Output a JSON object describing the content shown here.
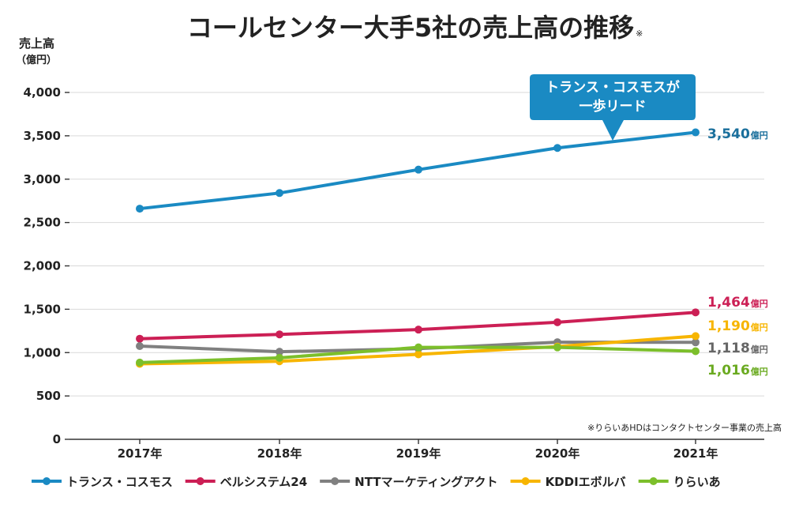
{
  "chart_data": {
    "type": "line",
    "title": "コールセンター大手5社の売上高の推移",
    "title_mark": "※",
    "ylabel": "売上高",
    "ylabel_unit": "（億円）",
    "ylim": [
      0,
      4000
    ],
    "yticks": [
      0,
      500,
      1000,
      1500,
      2000,
      2500,
      3000,
      3500,
      4000
    ],
    "ytick_labels": [
      "0",
      "500",
      "1,000",
      "1,500",
      "2,000",
      "2,500",
      "3,000",
      "3,500",
      "4,000"
    ],
    "categories": [
      "2017年",
      "2018年",
      "2019年",
      "2020年",
      "2021年"
    ],
    "grid": true,
    "legend_position": "bottom",
    "series": [
      {
        "name": "トランス・コスモス",
        "color": "#1a8ac3",
        "values": [
          2660,
          2840,
          3110,
          3360,
          3540
        ],
        "end_label": "3,540",
        "end_unit": "億円",
        "end_color": "#1a6f9c"
      },
      {
        "name": "ベルシステム24",
        "color": "#cc1f55",
        "values": [
          1160,
          1210,
          1265,
          1350,
          1464
        ],
        "end_label": "1,464",
        "end_unit": "億円",
        "end_color": "#cc1f55"
      },
      {
        "name": "NTTマーケティングアクト",
        "color": "#808080",
        "values": [
          1075,
          1010,
          1045,
          1120,
          1118
        ],
        "end_label": "1,118",
        "end_unit": "億円",
        "end_color": "#666666"
      },
      {
        "name": "KDDIエボルバ",
        "color": "#f7b500",
        "values": [
          870,
          900,
          980,
          1070,
          1190
        ],
        "end_label": "1,190",
        "end_unit": "億円",
        "end_color": "#f7b500"
      },
      {
        "name": "りらいあ",
        "color": "#7cbf2b",
        "values": [
          885,
          940,
          1060,
          1060,
          1016
        ],
        "end_label": "1,016",
        "end_unit": "億円",
        "end_color": "#6aaa20"
      }
    ],
    "annotations": {
      "callout_line1": "トランス・コスモスが",
      "callout_line2": "一歩リード",
      "callout_color": "#1a8ac3",
      "note": "※りらいあHDはコンタクトセンター事業の売上高"
    }
  }
}
